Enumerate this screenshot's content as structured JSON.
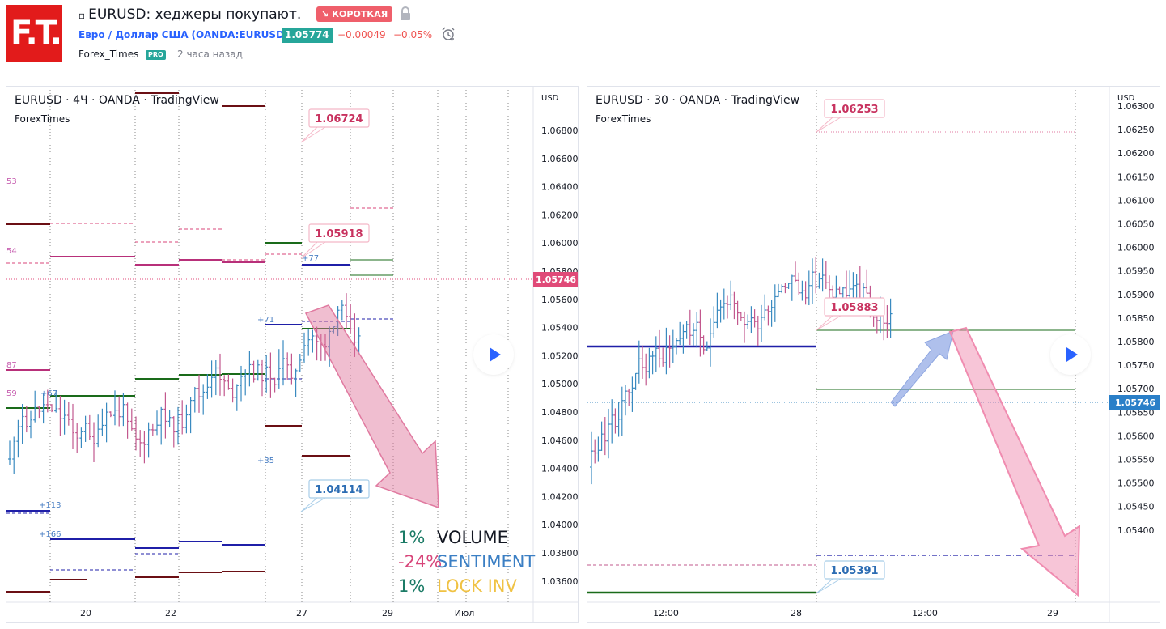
{
  "header": {
    "logo_text": "F.T.",
    "title": "EURUSD: хеджеры покупают.",
    "direction_badge": "↘ КОРОТКАЯ",
    "symbol_full": "Евро / Доллар США",
    "symbol_code": "(OANDA:EURUSD)",
    "price": "1.05774",
    "change": "−0.00049",
    "change_pct": "−0.05%",
    "author": "Forex_Times",
    "author_badge": "PRO",
    "time_ago": "2 часа назад"
  },
  "colors": {
    "brand": "#e21b1b",
    "up": "#26a69a",
    "down": "#ef5350",
    "accent": "#2962ff",
    "candle_up": "#3a8ac0",
    "candle_down": "#c2588e"
  },
  "left_chart": {
    "heading": "EURUSD · 4Ч · OANDA · TradingView",
    "subheading": "ForexTimes",
    "currency": "USD",
    "price_axis": [
      "1.06800",
      "1.06600",
      "1.06400",
      "1.06200",
      "1.06000",
      "1.05800",
      "1.05600",
      "1.05400",
      "1.05200",
      "1.05000",
      "1.04800",
      "1.04600",
      "1.04400",
      "1.04200",
      "1.04000",
      "1.03800",
      "1.03600"
    ],
    "time_axis": [
      "20",
      "22",
      "27",
      "29",
      "Июл"
    ],
    "current_price": "1.05746",
    "callouts": [
      "1.06724",
      "1.05918",
      "1.04114"
    ],
    "small_labels": [
      "+77",
      "+71",
      "+35",
      "+67",
      "+113",
      "+166"
    ],
    "edge_labels": [
      "53",
      "54",
      "87",
      "59"
    ],
    "legend": [
      {
        "pct": "1%",
        "name": "VOLUME",
        "pct_color": "#1b7b66",
        "name_color": "#131722"
      },
      {
        "pct": "-24%",
        "name": "SENTIMENT",
        "pct_color": "#d8457a",
        "name_color": "#3b7fc4"
      },
      {
        "pct": "1%",
        "name": "LOCK INV",
        "pct_color": "#1b7b66",
        "name_color": "#f0c243"
      }
    ]
  },
  "right_chart": {
    "heading": "EURUSD · 30 · OANDA · TradingView",
    "subheading": "ForexTimes",
    "currency": "USD",
    "price_axis": [
      "1.06300",
      "1.06250",
      "1.06200",
      "1.06150",
      "1.06100",
      "1.06050",
      "1.06000",
      "1.05950",
      "1.05900",
      "1.05850",
      "1.05800",
      "1.05750",
      "1.05700",
      "1.05650",
      "1.05600",
      "1.05550",
      "1.05500",
      "1.05450",
      "1.05400"
    ],
    "time_axis": [
      "12:00",
      "28",
      "12:00",
      "29"
    ],
    "current_price": "1.05746",
    "callouts": [
      "1.06253",
      "1.05883",
      "1.05391"
    ]
  }
}
